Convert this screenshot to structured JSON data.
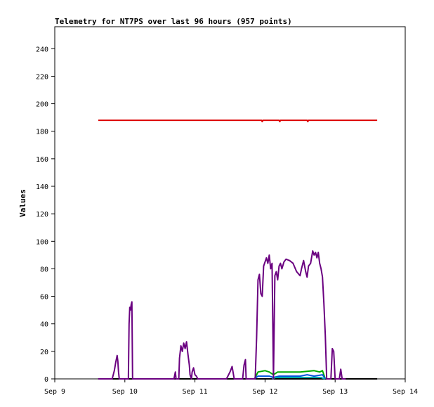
{
  "chart_data": {
    "type": "line",
    "title": "Telemetry for NT7PS over last 96 hours (957 points)",
    "ylabel": "Values",
    "xlabel": "",
    "xlim": [
      0,
      5
    ],
    "ylim": [
      0,
      256
    ],
    "x_ticks": [
      {
        "x": 0,
        "label": "Sep 9"
      },
      {
        "x": 1,
        "label": "Sep 10"
      },
      {
        "x": 2,
        "label": "Sep 11"
      },
      {
        "x": 3,
        "label": "Sep 12"
      },
      {
        "x": 4,
        "label": "Sep 13"
      },
      {
        "x": 5,
        "label": "Sep 14"
      }
    ],
    "y_ticks": [
      0,
      20,
      40,
      60,
      80,
      100,
      120,
      140,
      160,
      180,
      200,
      220,
      240
    ],
    "x_unit": "days since Sep 9",
    "grid": false,
    "series": [
      {
        "color": "#dd0000",
        "points": [
          [
            0.62,
            188
          ],
          [
            1.5,
            188
          ],
          [
            2.5,
            188
          ],
          [
            2.95,
            188
          ],
          [
            2.96,
            187
          ],
          [
            2.97,
            188
          ],
          [
            3.2,
            188
          ],
          [
            3.21,
            187
          ],
          [
            3.22,
            188
          ],
          [
            3.6,
            188
          ],
          [
            3.61,
            187
          ],
          [
            3.62,
            188
          ],
          [
            4.6,
            188
          ]
        ]
      },
      {
        "color": "#000000",
        "points": [
          [
            0.62,
            0
          ],
          [
            4.6,
            0
          ]
        ]
      },
      {
        "color": "#00aa00",
        "points": [
          [
            2.85,
            0
          ],
          [
            2.9,
            5
          ],
          [
            3.0,
            6
          ],
          [
            3.06,
            5
          ],
          [
            3.12,
            3
          ],
          [
            3.18,
            5
          ],
          [
            3.5,
            5
          ],
          [
            3.7,
            6
          ],
          [
            3.78,
            5
          ],
          [
            3.82,
            6
          ],
          [
            3.86,
            0
          ]
        ]
      },
      {
        "color": "#0055dd",
        "points": [
          [
            2.85,
            0
          ],
          [
            2.9,
            2
          ],
          [
            3.06,
            2
          ],
          [
            3.12,
            1
          ],
          [
            3.2,
            2
          ],
          [
            3.5,
            2
          ],
          [
            3.6,
            3
          ],
          [
            3.7,
            2
          ],
          [
            3.82,
            3
          ],
          [
            3.86,
            0
          ]
        ]
      },
      {
        "color": "#00aaaa",
        "points": [
          [
            3.1,
            0
          ],
          [
            3.15,
            1
          ],
          [
            3.5,
            1
          ],
          [
            3.8,
            1
          ],
          [
            3.85,
            0
          ]
        ]
      },
      {
        "color": "#6a0080",
        "points": [
          [
            0.62,
            0
          ],
          [
            0.82,
            0
          ],
          [
            0.85,
            6
          ],
          [
            0.87,
            12
          ],
          [
            0.89,
            17
          ],
          [
            0.9,
            13
          ],
          [
            0.91,
            5
          ],
          [
            0.92,
            0
          ],
          [
            1.05,
            0
          ],
          [
            1.06,
            40
          ],
          [
            1.07,
            52
          ],
          [
            1.08,
            50
          ],
          [
            1.09,
            54
          ],
          [
            1.1,
            56
          ],
          [
            1.11,
            0
          ],
          [
            1.7,
            0
          ],
          [
            1.72,
            5
          ],
          [
            1.73,
            0
          ],
          [
            1.77,
            0
          ],
          [
            1.78,
            15
          ],
          [
            1.8,
            24
          ],
          [
            1.82,
            20
          ],
          [
            1.84,
            26
          ],
          [
            1.86,
            22
          ],
          [
            1.88,
            27
          ],
          [
            1.9,
            18
          ],
          [
            1.92,
            10
          ],
          [
            1.93,
            3
          ],
          [
            1.95,
            0
          ],
          [
            1.96,
            5
          ],
          [
            1.98,
            8
          ],
          [
            2.0,
            3
          ],
          [
            2.02,
            2
          ],
          [
            2.04,
            0
          ],
          [
            2.45,
            0
          ],
          [
            2.5,
            5
          ],
          [
            2.53,
            9
          ],
          [
            2.56,
            0
          ],
          [
            2.68,
            0
          ],
          [
            2.7,
            10
          ],
          [
            2.72,
            14
          ],
          [
            2.73,
            0
          ],
          [
            2.86,
            0
          ],
          [
            2.88,
            30
          ],
          [
            2.9,
            72
          ],
          [
            2.92,
            76
          ],
          [
            2.94,
            62
          ],
          [
            2.96,
            60
          ],
          [
            2.98,
            82
          ],
          [
            3.0,
            85
          ],
          [
            3.02,
            88
          ],
          [
            3.04,
            84
          ],
          [
            3.06,
            90
          ],
          [
            3.08,
            80
          ],
          [
            3.1,
            84
          ],
          [
            3.12,
            0
          ],
          [
            3.14,
            75
          ],
          [
            3.16,
            78
          ],
          [
            3.18,
            72
          ],
          [
            3.2,
            82
          ],
          [
            3.22,
            84
          ],
          [
            3.24,
            80
          ],
          [
            3.27,
            85
          ],
          [
            3.3,
            87
          ],
          [
            3.35,
            86
          ],
          [
            3.4,
            84
          ],
          [
            3.45,
            78
          ],
          [
            3.5,
            75
          ],
          [
            3.52,
            80
          ],
          [
            3.55,
            86
          ],
          [
            3.58,
            78
          ],
          [
            3.6,
            74
          ],
          [
            3.62,
            82
          ],
          [
            3.65,
            84
          ],
          [
            3.68,
            93
          ],
          [
            3.7,
            90
          ],
          [
            3.72,
            92
          ],
          [
            3.74,
            88
          ],
          [
            3.76,
            92
          ],
          [
            3.78,
            84
          ],
          [
            3.8,
            80
          ],
          [
            3.82,
            74
          ],
          [
            3.84,
            55
          ],
          [
            3.86,
            32
          ],
          [
            3.88,
            0
          ],
          [
            3.94,
            0
          ],
          [
            3.96,
            22
          ],
          [
            3.98,
            20
          ],
          [
            4.0,
            0
          ],
          [
            4.06,
            0
          ],
          [
            4.08,
            7
          ],
          [
            4.1,
            0
          ],
          [
            4.15,
            0
          ]
        ]
      }
    ]
  }
}
